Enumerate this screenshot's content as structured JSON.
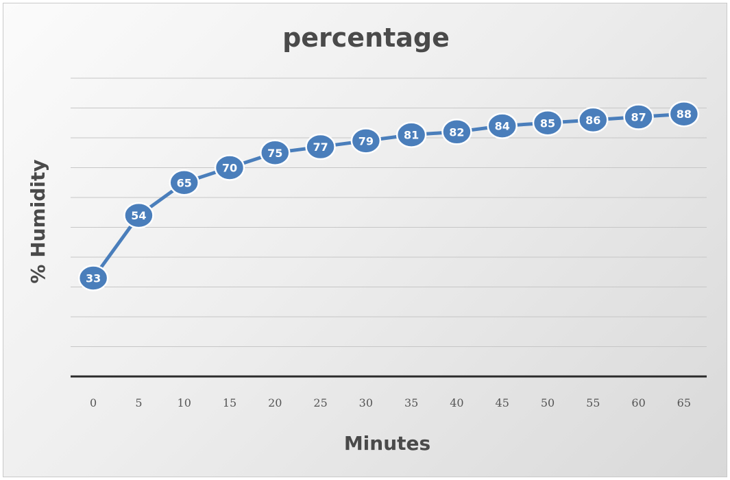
{
  "chart_data": {
    "type": "line",
    "title": "percentage",
    "xlabel": "Minutes",
    "ylabel": "% Humidity",
    "x": [
      0,
      5,
      10,
      15,
      20,
      25,
      30,
      35,
      40,
      45,
      50,
      55,
      60,
      65
    ],
    "series": [
      {
        "values": [
          33,
          54,
          65,
          70,
          75,
          77,
          79,
          81,
          82,
          84,
          85,
          86,
          87,
          88
        ],
        "color": "#4a7ebb"
      }
    ],
    "ylim": [
      0,
      100
    ],
    "grid": true,
    "legend": "none",
    "data_labels": true
  }
}
